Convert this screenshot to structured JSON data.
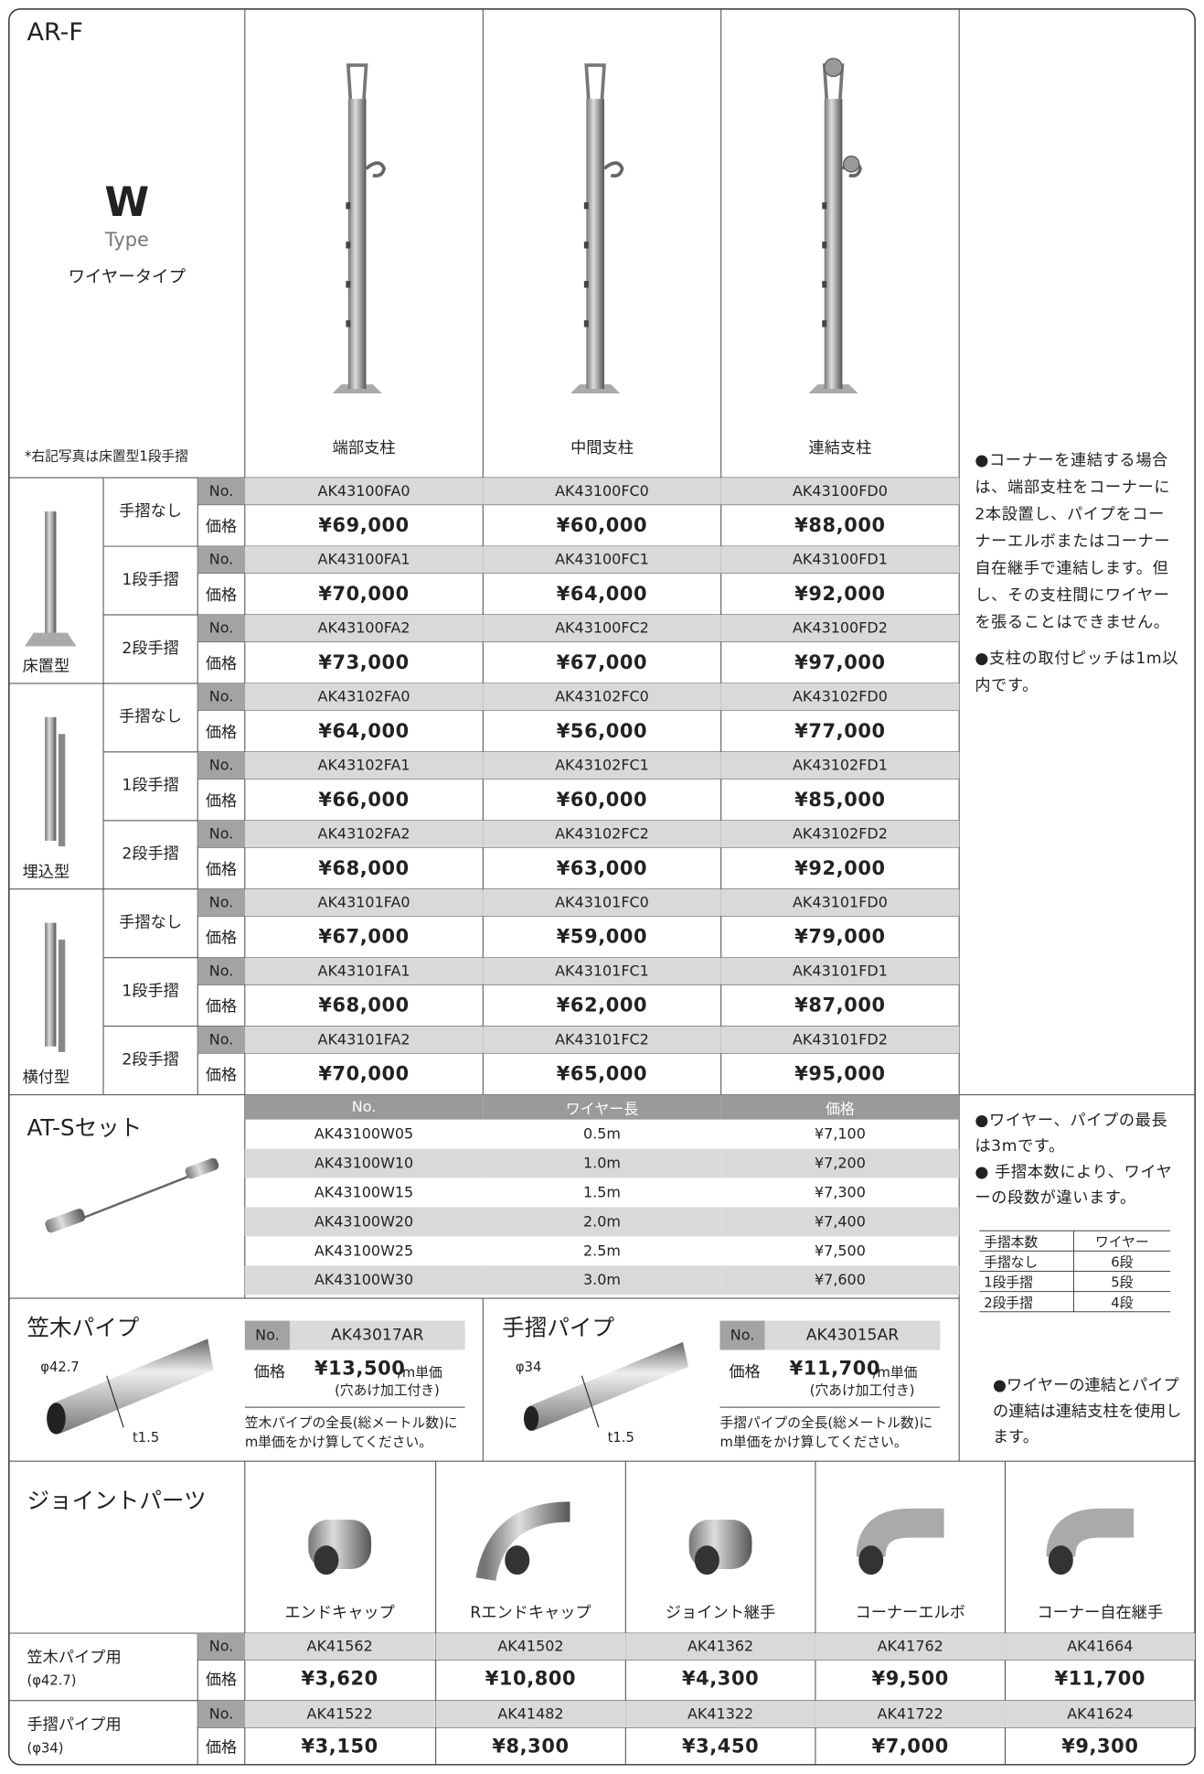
{
  "header": {
    "series": "AR-F",
    "type_letter": "W",
    "type_word": "Type",
    "type_name": "ワイヤータイプ",
    "photo_note": "*右記写真は床置型1段手摺"
  },
  "labels": {
    "no": "No.",
    "price": "価格"
  },
  "columns": [
    "端部支柱",
    "中間支柱",
    "連結支柱"
  ],
  "groups": [
    {
      "name": "床置型",
      "rows": [
        {
          "handrail": "手摺なし",
          "numbers": [
            "AK43100FA0",
            "AK43100FC0",
            "AK43100FD0"
          ],
          "prices": [
            "¥69,000",
            "¥60,000",
            "¥88,000"
          ]
        },
        {
          "handrail": "1段手摺",
          "numbers": [
            "AK43100FA1",
            "AK43100FC1",
            "AK43100FD1"
          ],
          "prices": [
            "¥70,000",
            "¥64,000",
            "¥92,000"
          ]
        },
        {
          "handrail": "2段手摺",
          "numbers": [
            "AK43100FA2",
            "AK43100FC2",
            "AK43100FD2"
          ],
          "prices": [
            "¥73,000",
            "¥67,000",
            "¥97,000"
          ]
        }
      ]
    },
    {
      "name": "埋込型",
      "rows": [
        {
          "handrail": "手摺なし",
          "numbers": [
            "AK43102FA0",
            "AK43102FC0",
            "AK43102FD0"
          ],
          "prices": [
            "¥64,000",
            "¥56,000",
            "¥77,000"
          ]
        },
        {
          "handrail": "1段手摺",
          "numbers": [
            "AK43102FA1",
            "AK43102FC1",
            "AK43102FD1"
          ],
          "prices": [
            "¥66,000",
            "¥60,000",
            "¥85,000"
          ]
        },
        {
          "handrail": "2段手摺",
          "numbers": [
            "AK43102FA2",
            "AK43102FC2",
            "AK43102FD2"
          ],
          "prices": [
            "¥68,000",
            "¥63,000",
            "¥92,000"
          ]
        }
      ]
    },
    {
      "name": "横付型",
      "rows": [
        {
          "handrail": "手摺なし",
          "numbers": [
            "AK43101FA0",
            "AK43101FC0",
            "AK43101FD0"
          ],
          "prices": [
            "¥67,000",
            "¥59,000",
            "¥79,000"
          ]
        },
        {
          "handrail": "1段手摺",
          "numbers": [
            "AK43101FA1",
            "AK43101FC1",
            "AK43101FD1"
          ],
          "prices": [
            "¥68,000",
            "¥62,000",
            "¥87,000"
          ]
        },
        {
          "handrail": "2段手摺",
          "numbers": [
            "AK43101FA2",
            "AK43101FC2",
            "AK43101FD2"
          ],
          "prices": [
            "¥70,000",
            "¥65,000",
            "¥95,000"
          ]
        }
      ]
    }
  ],
  "post_notes": [
    "●コーナーを連結する場合は、端部支柱をコーナーに2本設置し、パイプをコーナーエルボまたはコーナー自在継手で連結します。但し、その支柱間にワイヤーを張ることはできません。",
    "●支柱の取付ピッチは1m以内です。"
  ],
  "wire_set": {
    "title": "AT-Sセット",
    "headers": [
      "No.",
      "ワイヤー長",
      "価格"
    ],
    "rows": [
      [
        "AK43100W05",
        "0.5m",
        "¥7,100"
      ],
      [
        "AK43100W10",
        "1.0m",
        "¥7,200"
      ],
      [
        "AK43100W15",
        "1.5m",
        "¥7,300"
      ],
      [
        "AK43100W20",
        "2.0m",
        "¥7,400"
      ],
      [
        "AK43100W25",
        "2.5m",
        "¥7,500"
      ],
      [
        "AK43100W30",
        "3.0m",
        "¥7,600"
      ]
    ]
  },
  "wire_notes": {
    "notes": [
      "●ワイヤー、パイプの最長は3mです。",
      "● 手摺本数により、ワイヤーの段数が違います。"
    ],
    "table": {
      "headers": [
        "手摺本数",
        "ワイヤー"
      ],
      "rows": [
        [
          "手摺なし",
          "6段"
        ],
        [
          "1段手摺",
          "5段"
        ],
        [
          "2段手摺",
          "4段"
        ]
      ]
    },
    "last_note": "●ワイヤーの連結とパイプの連結は連結支柱を使用します。"
  },
  "pipes": [
    {
      "title": "笠木パイプ",
      "diameter": "φ42.7",
      "thickness": "t1.5",
      "number": "AK43017AR",
      "price": "¥13,500",
      "unit": "/m単価",
      "sub": "(穴あけ加工付き)",
      "note": "笠木パイプの全長(総メートル数)にm単価をかけ算してください。"
    },
    {
      "title": "手摺パイプ",
      "diameter": "φ34",
      "thickness": "t1.5",
      "number": "AK43015AR",
      "price": "¥11,700",
      "unit": "/m単価",
      "sub": "(穴あけ加工付き)",
      "note": "手摺パイプの全長(総メートル数)にm単価をかけ算してください。"
    }
  ],
  "joints": {
    "title": "ジョイントパーツ",
    "parts": [
      "エンドキャップ",
      "Rエンドキャップ",
      "ジョイント継手",
      "コーナーエルボ",
      "コーナー自在継手"
    ],
    "rows": [
      {
        "label": "笠木パイプ用",
        "sub": "(φ42.7)",
        "numbers": [
          "AK41562",
          "AK41502",
          "AK41362",
          "AK41762",
          "AK41664"
        ],
        "prices": [
          "¥3,620",
          "¥10,800",
          "¥4,300",
          "¥9,500",
          "¥11,700"
        ]
      },
      {
        "label": "手摺パイプ用",
        "sub": "(φ34)",
        "numbers": [
          "AK41522",
          "AK41482",
          "AK41322",
          "AK41722",
          "AK41624"
        ],
        "prices": [
          "¥3,150",
          "¥8,300",
          "¥3,450",
          "¥7,000",
          "¥9,300"
        ]
      }
    ]
  }
}
